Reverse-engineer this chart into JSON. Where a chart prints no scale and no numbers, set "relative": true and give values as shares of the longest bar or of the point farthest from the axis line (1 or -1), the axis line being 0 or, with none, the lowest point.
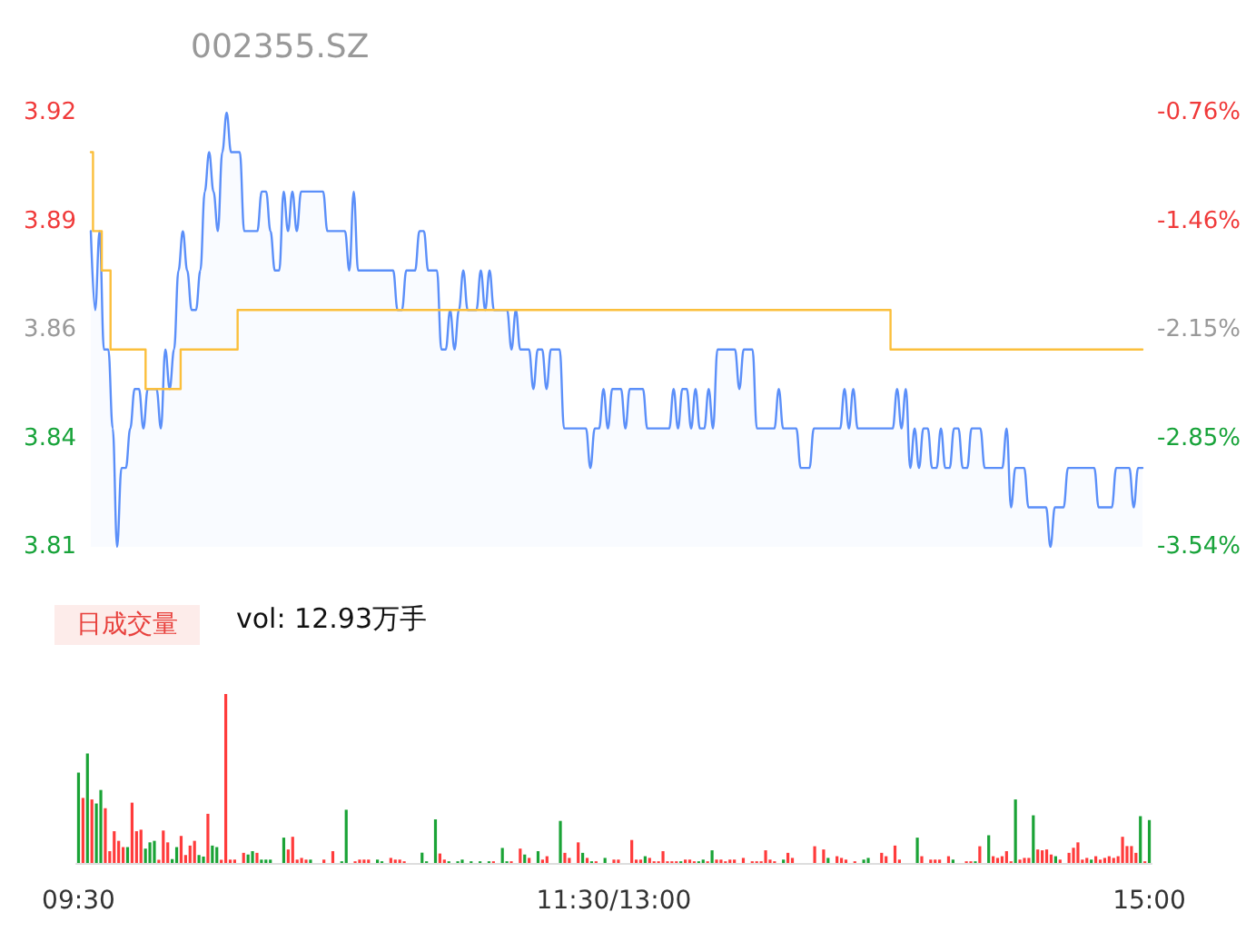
{
  "chart_data": [
    {
      "type": "area",
      "title": "002355.SZ",
      "categories": [
        null,
        null,
        null,
        null,
        null,
        null,
        null,
        null,
        null,
        null,
        null,
        null,
        null,
        null,
        null,
        null,
        null,
        null,
        null,
        null,
        null,
        null,
        null,
        null,
        null,
        null,
        null,
        null,
        null,
        null,
        null,
        null,
        null,
        null,
        null,
        null,
        null,
        null,
        null,
        null,
        null,
        null,
        null,
        null,
        null,
        null,
        null,
        null,
        null,
        null,
        null,
        null,
        null,
        null,
        null,
        null,
        null,
        null,
        null,
        null,
        null,
        null,
        null,
        null,
        null,
        null,
        null,
        null,
        null,
        null,
        null,
        null,
        null,
        null,
        null,
        null,
        null,
        null,
        null,
        null,
        null,
        null,
        null,
        null,
        null,
        null,
        null,
        null,
        null,
        null,
        null,
        null,
        null,
        null,
        null,
        null,
        null,
        null,
        null,
        null,
        null,
        null,
        null,
        null,
        null,
        null,
        null,
        null,
        null,
        null,
        null,
        null,
        null,
        null,
        null,
        null,
        null,
        null,
        null,
        null,
        null,
        null,
        null,
        null,
        null,
        null,
        null,
        null,
        null,
        null,
        null,
        null,
        null,
        null,
        null,
        null,
        null,
        null,
        null,
        null,
        null,
        null,
        null,
        null,
        null,
        null,
        null,
        null,
        null,
        null,
        null,
        null,
        null,
        null,
        null,
        null,
        null,
        null,
        null,
        null,
        null,
        null,
        null,
        null,
        null,
        null,
        null,
        null,
        null,
        null,
        null,
        null,
        null,
        null,
        null,
        null,
        null,
        null,
        null,
        null,
        null,
        null,
        null,
        null,
        null,
        null,
        null,
        null,
        null,
        null,
        null,
        null,
        null,
        null,
        null,
        null,
        null,
        null,
        null,
        null,
        null,
        null,
        null,
        null,
        null,
        null,
        null,
        null,
        null,
        null,
        null,
        null,
        null,
        null,
        null,
        null,
        null,
        null,
        null,
        null,
        null,
        null,
        null,
        null,
        null,
        null,
        null,
        null,
        null,
        null,
        null,
        null,
        null,
        null,
        null,
        null,
        null,
        null,
        null,
        null,
        null
      ],
      "ylim": [
        3.81,
        3.92
      ],
      "yticks": [
        3.92,
        {
          "value": 3.8925,
          "label": "3.89"
        },
        {
          "value": 3.865,
          "label": "3.86"
        },
        {
          "value": 3.8375,
          "label": "3.84"
        },
        3.81
      ],
      "y2lim": [
        -3.54,
        -0.76
      ],
      "y2ticks": [
        {
          "value": -0.76,
          "label": "-0.76%"
        },
        {
          "value": -1.455,
          "label": "-1.46%"
        },
        {
          "value": -2.15,
          "label": "-2.15%"
        },
        {
          "value": -2.845,
          "label": "-2.85%"
        },
        {
          "value": -3.54,
          "label": "-3.54%"
        }
      ],
      "tick_labels": "y",
      "series": [
        {
          "type": "area",
          "color": "#5b8ff9",
          "values": [
            3.89,
            3.87,
            3.89,
            3.86,
            3.86,
            3.84,
            3.81,
            3.83,
            3.83,
            3.84,
            3.85,
            3.85,
            3.84,
            3.85,
            3.85,
            3.85,
            3.84,
            3.86,
            3.85,
            3.86,
            3.88,
            3.89,
            3.88,
            3.87,
            3.87,
            3.88,
            3.9,
            3.91,
            3.9,
            3.89,
            3.91,
            3.92,
            3.91,
            3.91,
            3.91,
            3.89,
            3.89,
            3.89,
            3.89,
            3.9,
            3.9,
            3.89,
            3.88,
            3.88,
            3.9,
            3.89,
            3.9,
            3.89,
            3.9,
            3.9,
            3.9,
            3.9,
            3.9,
            3.9,
            3.89,
            3.89,
            3.89,
            3.89,
            3.89,
            3.88,
            3.9,
            3.88,
            3.88,
            3.88,
            3.88,
            3.88,
            3.88,
            3.88,
            3.88,
            3.88,
            3.87,
            3.87,
            3.88,
            3.88,
            3.88,
            3.89,
            3.89,
            3.88,
            3.88,
            3.88,
            3.86,
            3.86,
            3.87,
            3.86,
            3.87,
            3.88,
            3.87,
            3.87,
            3.87,
            3.88,
            3.87,
            3.88,
            3.87,
            3.87,
            3.87,
            3.87,
            3.86,
            3.87,
            3.86,
            3.86,
            3.86,
            3.85,
            3.86,
            3.86,
            3.85,
            3.86,
            3.86,
            3.86,
            3.84,
            3.84,
            3.84,
            3.84,
            3.84,
            3.84,
            3.83,
            3.84,
            3.84,
            3.85,
            3.84,
            3.85,
            3.85,
            3.85,
            3.84,
            3.85,
            3.85,
            3.85,
            3.85,
            3.84,
            3.84,
            3.84,
            3.84,
            3.84,
            3.84,
            3.85,
            3.84,
            3.85,
            3.85,
            3.84,
            3.85,
            3.84,
            3.84,
            3.85,
            3.84,
            3.86,
            3.86,
            3.86,
            3.86,
            3.86,
            3.85,
            3.86,
            3.86,
            3.86,
            3.84,
            3.84,
            3.84,
            3.84,
            3.84,
            3.85,
            3.84,
            3.84,
            3.84,
            3.84,
            3.83,
            3.83,
            3.83,
            3.84,
            3.84,
            3.84,
            3.84,
            3.84,
            3.84,
            3.84,
            3.85,
            3.84,
            3.85,
            3.84,
            3.84,
            3.84,
            3.84,
            3.84,
            3.84,
            3.84,
            3.84,
            3.84,
            3.85,
            3.84,
            3.85,
            3.83,
            3.84,
            3.83,
            3.84,
            3.84,
            3.83,
            3.83,
            3.84,
            3.83,
            3.83,
            3.84,
            3.84,
            3.83,
            3.83,
            3.84,
            3.84,
            3.84,
            3.83,
            3.83,
            3.83,
            3.83,
            3.83,
            3.84,
            3.82,
            3.83,
            3.83,
            3.83,
            3.82,
            3.82,
            3.82,
            3.82,
            3.82,
            3.81,
            3.82,
            3.82,
            3.82,
            3.83,
            3.83,
            3.83,
            3.83,
            3.83,
            3.83,
            3.83,
            3.82,
            3.82,
            3.82,
            3.82,
            3.83,
            3.83,
            3.83,
            3.83,
            3.82,
            3.83,
            3.83
          ]
        },
        {
          "type": "step",
          "color": "#fbbf3c",
          "values": [
            3.91,
            3.89,
            3.89,
            3.88,
            3.88,
            3.86,
            3.86,
            3.86,
            3.86,
            3.86,
            3.86,
            3.86,
            3.86,
            3.85,
            3.85,
            3.85,
            3.85,
            3.85,
            3.85,
            3.85,
            3.85,
            3.86,
            3.86,
            3.86,
            3.86,
            3.86,
            3.86,
            3.86,
            3.86,
            3.86,
            3.86,
            3.86,
            3.86,
            3.86,
            3.87,
            3.87,
            3.87,
            3.87,
            3.87,
            3.87,
            3.87,
            3.87,
            3.87,
            3.87,
            3.87,
            3.87,
            3.87,
            3.87,
            3.87,
            3.87,
            3.87,
            3.87,
            3.87,
            3.87,
            3.87,
            3.87,
            3.87,
            3.87,
            3.87,
            3.87,
            3.87,
            3.87,
            3.87,
            3.87,
            3.87,
            3.87,
            3.87,
            3.87,
            3.87,
            3.87,
            3.87,
            3.87,
            3.87,
            3.87,
            3.87,
            3.87,
            3.87,
            3.87,
            3.87,
            3.87,
            3.87,
            3.87,
            3.87,
            3.87,
            3.87,
            3.87,
            3.87,
            3.87,
            3.87,
            3.87,
            3.87,
            3.87,
            3.87,
            3.87,
            3.87,
            3.87,
            3.87,
            3.87,
            3.87,
            3.87,
            3.87,
            3.87,
            3.87,
            3.87,
            3.87,
            3.87,
            3.87,
            3.87,
            3.87,
            3.87,
            3.87,
            3.87,
            3.87,
            3.87,
            3.87,
            3.87,
            3.87,
            3.87,
            3.87,
            3.87,
            3.87,
            3.87,
            3.87,
            3.87,
            3.87,
            3.87,
            3.87,
            3.87,
            3.87,
            3.87,
            3.87,
            3.87,
            3.87,
            3.87,
            3.87,
            3.87,
            3.87,
            3.87,
            3.87,
            3.87,
            3.87,
            3.87,
            3.87,
            3.87,
            3.87,
            3.87,
            3.87,
            3.87,
            3.87,
            3.87,
            3.87,
            3.87,
            3.87,
            3.87,
            3.87,
            3.87,
            3.87,
            3.87,
            3.87,
            3.87,
            3.87,
            3.87,
            3.87,
            3.87,
            3.87,
            3.87,
            3.87,
            3.87,
            3.87,
            3.87,
            3.87,
            3.87,
            3.87,
            3.87,
            3.87,
            3.87,
            3.87,
            3.87,
            3.87,
            3.87,
            3.87,
            3.87,
            3.87,
            3.86,
            3.86,
            3.86,
            3.86,
            3.86,
            3.86,
            3.86,
            3.86,
            3.86,
            3.86,
            3.86,
            3.86,
            3.86,
            3.86,
            3.86,
            3.86,
            3.86,
            3.86,
            3.86,
            3.86,
            3.86,
            3.86,
            3.86,
            3.86,
            3.86,
            3.86,
            3.86,
            3.86,
            3.86,
            3.86,
            3.86,
            3.86,
            3.86,
            3.86,
            3.86,
            3.86,
            3.86,
            3.86,
            3.86,
            3.86,
            3.86,
            3.86,
            3.86,
            3.86,
            3.86,
            3.86,
            3.86,
            3.86,
            3.86,
            3.86,
            3.86,
            3.86,
            3.86,
            3.86,
            3.86,
            3.86,
            3.86,
            3.86
          ]
        }
      ]
    },
    {
      "type": "bar",
      "relative": true,
      "annotations": [
        "日成交量",
        "vol: 12.93万手"
      ],
      "categories": [
        "09:30",
        null,
        null,
        null,
        null,
        null,
        null,
        null,
        null,
        null,
        null,
        null,
        null,
        null,
        null,
        null,
        null,
        null,
        null,
        null,
        null,
        null,
        null,
        null,
        null,
        null,
        null,
        null,
        null,
        null,
        null,
        null,
        null,
        null,
        null,
        null,
        null,
        null,
        null,
        null,
        null,
        null,
        null,
        null,
        null,
        null,
        null,
        null,
        null,
        null,
        null,
        null,
        null,
        null,
        null,
        null,
        null,
        null,
        null,
        null,
        null,
        null,
        null,
        null,
        null,
        null,
        null,
        null,
        null,
        null,
        null,
        null,
        null,
        null,
        null,
        null,
        null,
        null,
        null,
        null,
        null,
        null,
        null,
        null,
        null,
        null,
        null,
        null,
        null,
        null,
        null,
        null,
        null,
        null,
        null,
        null,
        null,
        null,
        null,
        null,
        null,
        null,
        null,
        null,
        null,
        null,
        null,
        null,
        null,
        null,
        null,
        null,
        null,
        null,
        null,
        null,
        null,
        null,
        null,
        null,
        "11:30/13:00",
        null,
        null,
        null,
        null,
        null,
        null,
        null,
        null,
        null,
        null,
        null,
        null,
        null,
        null,
        null,
        null,
        null,
        null,
        null,
        null,
        null,
        null,
        null,
        null,
        null,
        null,
        null,
        null,
        null,
        null,
        null,
        null,
        null,
        null,
        null,
        null,
        null,
        null,
        null,
        null,
        null,
        null,
        null,
        null,
        null,
        null,
        null,
        null,
        null,
        null,
        null,
        null,
        null,
        null,
        null,
        null,
        null,
        null,
        null,
        null,
        null,
        null,
        null,
        null,
        null,
        null,
        null,
        null,
        null,
        null,
        null,
        null,
        null,
        null,
        null,
        null,
        null,
        null,
        null,
        null,
        null,
        null,
        null,
        null,
        null,
        null,
        null,
        null,
        null,
        null,
        null,
        null,
        null,
        null,
        null,
        null,
        null,
        null,
        null,
        null,
        null,
        null,
        null,
        null,
        null,
        null,
        null,
        null,
        null,
        null,
        null,
        null,
        null,
        null,
        null,
        null,
        null,
        null,
        null,
        "15:00"
      ],
      "series": [
        {
          "color": "#ff3b3b",
          "values": [
            null,
            0.385,
            null,
            0.376,
            null,
            null,
            0.324,
            0.07,
            0.188,
            0.131,
            0.094,
            null,
            0.357,
            0.188,
            0.197,
            null,
            null,
            null,
            0.019,
            0.192,
            0.122,
            null,
            null,
            0.16,
            0.047,
            0.103,
            0.131,
            null,
            null,
            0.291,
            null,
            null,
            0.019,
            1,
            0.02,
            0.02,
            null,
            0.06,
            null,
            null,
            0.06,
            null,
            null,
            null,
            null,
            null,
            null,
            0.08,
            0.155,
            0.02,
            0.03,
            0.02,
            null,
            null,
            null,
            0.02,
            null,
            0.07,
            null,
            null,
            null,
            null,
            0.01,
            0.02,
            0.02,
            0.02,
            null,
            null,
            null,
            null,
            0.03,
            0.02,
            0.02,
            0.01,
            null,
            null,
            null,
            null,
            null,
            null,
            null,
            0.056,
            0.02,
            null,
            null,
            null,
            null,
            null,
            null,
            null,
            null,
            null,
            null,
            0.01,
            null,
            null,
            null,
            0.01,
            null,
            0.085,
            null,
            0.03,
            null,
            null,
            0.02,
            0.04,
            null,
            null,
            null,
            0.06,
            0.03,
            null,
            0.122,
            null,
            0.03,
            null,
            0.01,
            null,
            null,
            null,
            0.02,
            0.02,
            null,
            null,
            0.136,
            0.02,
            0.02,
            null,
            0.03,
            0.01,
            0.01,
            0.07,
            0.01,
            0.01,
            0.01,
            null,
            0.02,
            0.02,
            0.01,
            null,
            null,
            0.01,
            null,
            0.02,
            0.02,
            0.01,
            0.02,
            0.02,
            null,
            0.03,
            null,
            0.01,
            0.01,
            0.01,
            0.075,
            0.02,
            0.01,
            null,
            null,
            0.06,
            0.03,
            null,
            null,
            null,
            null,
            0.099,
            null,
            0.08,
            null,
            null,
            0.04,
            0.03,
            0.02,
            null,
            0.01,
            null,
            null,
            null,
            null,
            null,
            0.06,
            0.04,
            null,
            0.103,
            0.02,
            null,
            null,
            null,
            null,
            0.04,
            null,
            0.02,
            0.02,
            0.02,
            null,
            0.04,
            null,
            null,
            null,
            0.01,
            0.01,
            null,
            0.099,
            null,
            null,
            0.04,
            0.03,
            0.04,
            0.07,
            0.01,
            null,
            0.02,
            0.03,
            0.03,
            null,
            0.08,
            0.075,
            0.08,
            0.05,
            null,
            0.02,
            null,
            0.06,
            0.09,
            0.122,
            0.02,
            0.03,
            null,
            0.04,
            0.02,
            0.03,
            0.04,
            0.03,
            0.04,
            0.155,
            0.1,
            0.1,
            0.06,
            null,
            0.01,
            null
          ]
        },
        {
          "color": "#1aa336",
          "values": [
            0.535,
            null,
            0.648,
            null,
            0.352,
            0.432,
            null,
            null,
            null,
            null,
            null,
            0.094,
            null,
            null,
            null,
            0.085,
            0.122,
            0.131,
            null,
            null,
            null,
            0.023,
            0.094,
            null,
            null,
            null,
            null,
            0.047,
            0.038,
            null,
            0.103,
            0.094,
            null,
            null,
            null,
            null,
            null,
            null,
            0.05,
            0.07,
            null,
            0.02,
            0.02,
            0.02,
            null,
            null,
            0.15,
            null,
            null,
            null,
            null,
            null,
            0.02,
            null,
            null,
            null,
            null,
            null,
            null,
            0.01,
            0.315,
            null,
            null,
            null,
            null,
            null,
            null,
            0.02,
            0.01,
            null,
            null,
            null,
            null,
            null,
            null,
            null,
            null,
            0.061,
            0.01,
            null,
            0.258,
            null,
            null,
            0.01,
            null,
            0.01,
            0.02,
            null,
            0.01,
            null,
            0.01,
            null,
            0.01,
            null,
            null,
            0.089,
            0.01,
            null,
            null,
            null,
            0.05,
            null,
            null,
            0.07,
            null,
            null,
            null,
            null,
            0.249,
            null,
            null,
            null,
            null,
            0.06,
            null,
            0.01,
            null,
            null,
            0.03,
            null,
            null,
            null,
            null,
            null,
            null,
            null,
            null,
            0.04,
            null,
            null,
            null,
            null,
            null,
            null,
            null,
            0.01,
            null,
            null,
            null,
            0.01,
            0.02,
            null,
            0.075,
            null,
            null,
            null,
            null,
            null,
            null,
            null,
            null,
            null,
            null,
            null,
            null,
            null,
            null,
            null,
            0.02,
            null,
            null,
            null,
            null,
            null,
            null,
            null,
            null,
            null,
            0.03,
            null,
            null,
            null,
            null,
            null,
            null,
            null,
            0.02,
            0.03,
            null,
            null,
            null,
            null,
            null,
            null,
            null,
            null,
            null,
            null,
            0.15,
            null,
            null,
            null,
            null,
            null,
            null,
            null,
            0.02,
            null,
            null,
            null,
            null,
            0.01,
            null,
            null,
            0.164,
            null,
            null,
            null,
            null,
            null,
            0.376,
            null,
            null,
            null,
            0.282,
            null,
            null,
            null,
            null,
            0.04,
            null,
            null,
            null,
            null,
            null,
            null,
            null,
            0.02,
            null,
            null,
            null,
            null,
            null,
            null,
            null,
            null,
            null,
            null,
            0.277,
            null,
            0.254
          ]
        }
      ]
    }
  ]
}
